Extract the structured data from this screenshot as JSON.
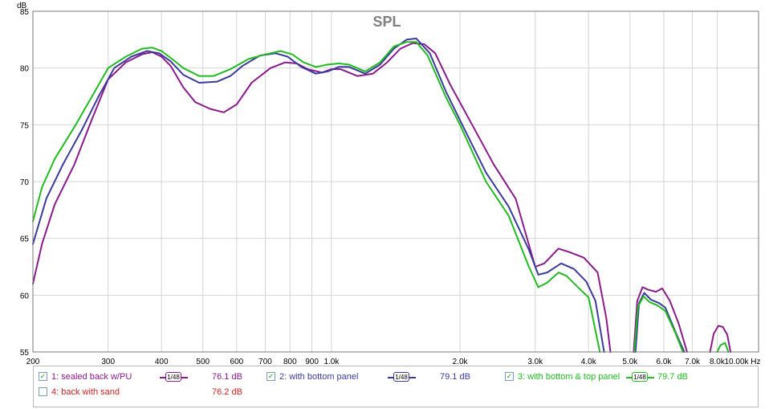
{
  "chart_data": {
    "type": "line",
    "title": "SPL",
    "ylabel": "dB",
    "xlabel": "Hz",
    "x_scale": "log",
    "xlim": [
      200,
      10000
    ],
    "ylim": [
      55,
      85
    ],
    "grid": true,
    "x_ticks": [
      {
        "v": 200,
        "label": "200"
      },
      {
        "v": 300,
        "label": "300"
      },
      {
        "v": 400,
        "label": "400"
      },
      {
        "v": 500,
        "label": "500"
      },
      {
        "v": 600,
        "label": "600"
      },
      {
        "v": 700,
        "label": "700"
      },
      {
        "v": 800,
        "label": "800"
      },
      {
        "v": 900,
        "label": "900"
      },
      {
        "v": 1000,
        "label": "1.0k"
      },
      {
        "v": 2000,
        "label": "2.0k"
      },
      {
        "v": 3000,
        "label": "3.0k"
      },
      {
        "v": 4000,
        "label": "4.0k"
      },
      {
        "v": 5000,
        "label": "5.0k"
      },
      {
        "v": 6000,
        "label": "6.0k"
      },
      {
        "v": 7000,
        "label": "7.0k"
      },
      {
        "v": 8000,
        "label": "8.0k"
      },
      {
        "v": 10000,
        "label": "10.00k Hz"
      }
    ],
    "y_ticks": [
      {
        "v": 55,
        "label": "55"
      },
      {
        "v": 60,
        "label": "60"
      },
      {
        "v": 65,
        "label": "65"
      },
      {
        "v": 70,
        "label": "70"
      },
      {
        "v": 75,
        "label": "75"
      },
      {
        "v": 80,
        "label": "80"
      },
      {
        "v": 85,
        "label": "85"
      }
    ],
    "series": [
      {
        "name": "1: sealed back w/PU",
        "color": "#8b1a8b",
        "points": [
          [
            200,
            61
          ],
          [
            210,
            64.5
          ],
          [
            225,
            68
          ],
          [
            250,
            71.5
          ],
          [
            275,
            75.5
          ],
          [
            300,
            79
          ],
          [
            330,
            80.5
          ],
          [
            360,
            81.2
          ],
          [
            380,
            81.4
          ],
          [
            400,
            81
          ],
          [
            420,
            80.2
          ],
          [
            450,
            78.3
          ],
          [
            480,
            77
          ],
          [
            520,
            76.4
          ],
          [
            560,
            76.1
          ],
          [
            600,
            76.8
          ],
          [
            650,
            78.7
          ],
          [
            720,
            80
          ],
          [
            780,
            80.5
          ],
          [
            830,
            80.4
          ],
          [
            880,
            79.9
          ],
          [
            950,
            79.6
          ],
          [
            1000,
            79.9
          ],
          [
            1050,
            79.9
          ],
          [
            1150,
            79.3
          ],
          [
            1250,
            79.5
          ],
          [
            1350,
            80.5
          ],
          [
            1450,
            81.7
          ],
          [
            1550,
            82.2
          ],
          [
            1650,
            82.1
          ],
          [
            1750,
            81.3
          ],
          [
            1900,
            78.5
          ],
          [
            2100,
            75.5
          ],
          [
            2400,
            71.5
          ],
          [
            2700,
            68.5
          ],
          [
            3000,
            62.5
          ],
          [
            3150,
            62.8
          ],
          [
            3400,
            64.1
          ],
          [
            3600,
            63.8
          ],
          [
            3900,
            63.3
          ],
          [
            4200,
            62
          ],
          [
            4400,
            58
          ],
          [
            4500,
            55
          ]
        ]
      },
      {
        "name": "1: sealed back w/PU",
        "color": "#8b1a8b",
        "points": [
          [
            5100,
            55
          ],
          [
            5200,
            59.5
          ],
          [
            5350,
            60.7
          ],
          [
            5500,
            60.5
          ],
          [
            5750,
            60.3
          ],
          [
            5950,
            60.6
          ],
          [
            6200,
            59.5
          ],
          [
            6500,
            57.5
          ],
          [
            6800,
            55
          ]
        ]
      },
      {
        "name": "1: sealed back w/PU",
        "color": "#8b1a8b",
        "points": [
          [
            7700,
            55
          ],
          [
            7850,
            56.6
          ],
          [
            8050,
            57.3
          ],
          [
            8250,
            57.2
          ],
          [
            8450,
            56.5
          ],
          [
            8600,
            55
          ]
        ]
      },
      {
        "name": "2: with bottom panel",
        "color": "#3b3b9b",
        "points": [
          [
            200,
            64.5
          ],
          [
            215,
            68.5
          ],
          [
            235,
            71.5
          ],
          [
            260,
            74.5
          ],
          [
            285,
            77.5
          ],
          [
            310,
            80
          ],
          [
            340,
            81
          ],
          [
            370,
            81.5
          ],
          [
            395,
            81.3
          ],
          [
            420,
            80.6
          ],
          [
            450,
            79.4
          ],
          [
            490,
            78.7
          ],
          [
            540,
            78.8
          ],
          [
            580,
            79.3
          ],
          [
            620,
            80.2
          ],
          [
            680,
            81.1
          ],
          [
            740,
            81.3
          ],
          [
            790,
            81
          ],
          [
            850,
            80.1
          ],
          [
            920,
            79.5
          ],
          [
            980,
            79.7
          ],
          [
            1040,
            80.1
          ],
          [
            1100,
            80.1
          ],
          [
            1200,
            79.5
          ],
          [
            1300,
            80.3
          ],
          [
            1400,
            81.7
          ],
          [
            1500,
            82.5
          ],
          [
            1580,
            82.6
          ],
          [
            1700,
            81.3
          ],
          [
            1850,
            78
          ],
          [
            2000,
            75.4
          ],
          [
            2300,
            70.8
          ],
          [
            2600,
            67.8
          ],
          [
            2900,
            64
          ],
          [
            3050,
            61.8
          ],
          [
            3200,
            62
          ],
          [
            3450,
            62.8
          ],
          [
            3700,
            62.3
          ],
          [
            3950,
            61.2
          ],
          [
            4150,
            59.5
          ],
          [
            4350,
            55
          ]
        ]
      },
      {
        "name": "2: with bottom panel",
        "color": "#3b3b9b",
        "points": [
          [
            5150,
            55
          ],
          [
            5250,
            59.3
          ],
          [
            5400,
            60.2
          ],
          [
            5600,
            59.6
          ],
          [
            5850,
            59.3
          ],
          [
            6050,
            58.9
          ],
          [
            6400,
            56.7
          ],
          [
            6700,
            55
          ]
        ]
      },
      {
        "name": "3: with bottom & top panel",
        "color": "#22bb22",
        "points": [
          [
            200,
            66.5
          ],
          [
            210,
            69.5
          ],
          [
            225,
            72
          ],
          [
            250,
            74.8
          ],
          [
            275,
            77.5
          ],
          [
            300,
            80
          ],
          [
            330,
            81
          ],
          [
            360,
            81.7
          ],
          [
            380,
            81.8
          ],
          [
            400,
            81.5
          ],
          [
            420,
            80.9
          ],
          [
            450,
            80
          ],
          [
            490,
            79.3
          ],
          [
            530,
            79.3
          ],
          [
            580,
            79.9
          ],
          [
            640,
            80.8
          ],
          [
            700,
            81.2
          ],
          [
            760,
            81.5
          ],
          [
            810,
            81.2
          ],
          [
            860,
            80.5
          ],
          [
            920,
            80.1
          ],
          [
            980,
            80.3
          ],
          [
            1040,
            80.4
          ],
          [
            1100,
            80.3
          ],
          [
            1200,
            79.7
          ],
          [
            1300,
            80.5
          ],
          [
            1400,
            81.9
          ],
          [
            1500,
            82.3
          ],
          [
            1580,
            82.3
          ],
          [
            1680,
            81.1
          ],
          [
            1850,
            77.5
          ],
          [
            2000,
            75
          ],
          [
            2300,
            70
          ],
          [
            2600,
            67
          ],
          [
            2900,
            62.5
          ],
          [
            3050,
            60.7
          ],
          [
            3200,
            61.1
          ],
          [
            3400,
            62
          ],
          [
            3550,
            61.7
          ],
          [
            3800,
            60.6
          ],
          [
            4000,
            59.8
          ],
          [
            4250,
            55
          ]
        ]
      },
      {
        "name": "3: with bottom & top panel",
        "color": "#22bb22",
        "points": [
          [
            5120,
            55
          ],
          [
            5220,
            59
          ],
          [
            5380,
            59.9
          ],
          [
            5550,
            59.4
          ],
          [
            5800,
            59.1
          ],
          [
            6050,
            58.6
          ],
          [
            6400,
            56.6
          ],
          [
            6650,
            55
          ]
        ]
      },
      {
        "name": "3: with bottom & top panel",
        "color": "#22bb22",
        "points": [
          [
            8000,
            55
          ],
          [
            8150,
            55.6
          ],
          [
            8350,
            55.8
          ],
          [
            8500,
            55
          ]
        ]
      }
    ]
  },
  "legend": {
    "rows": [
      [
        {
          "checked": true,
          "label": "1: sealed back w/PU",
          "color": "#8b1a8b",
          "smoothing": "1/48",
          "value": "76.1 dB"
        },
        {
          "checked": true,
          "label": "2: with bottom panel",
          "color": "#3b3b9b",
          "smoothing": "1/48",
          "value": "79.1 dB"
        },
        {
          "checked": true,
          "label": "3: with bottom & top panel",
          "color": "#22bb22",
          "smoothing": "1/48",
          "value": "79.7 dB"
        }
      ],
      [
        {
          "checked": false,
          "label": "4: back with sand",
          "color": "#cc2222",
          "smoothing": "",
          "value": "76.2 dB"
        }
      ]
    ]
  }
}
